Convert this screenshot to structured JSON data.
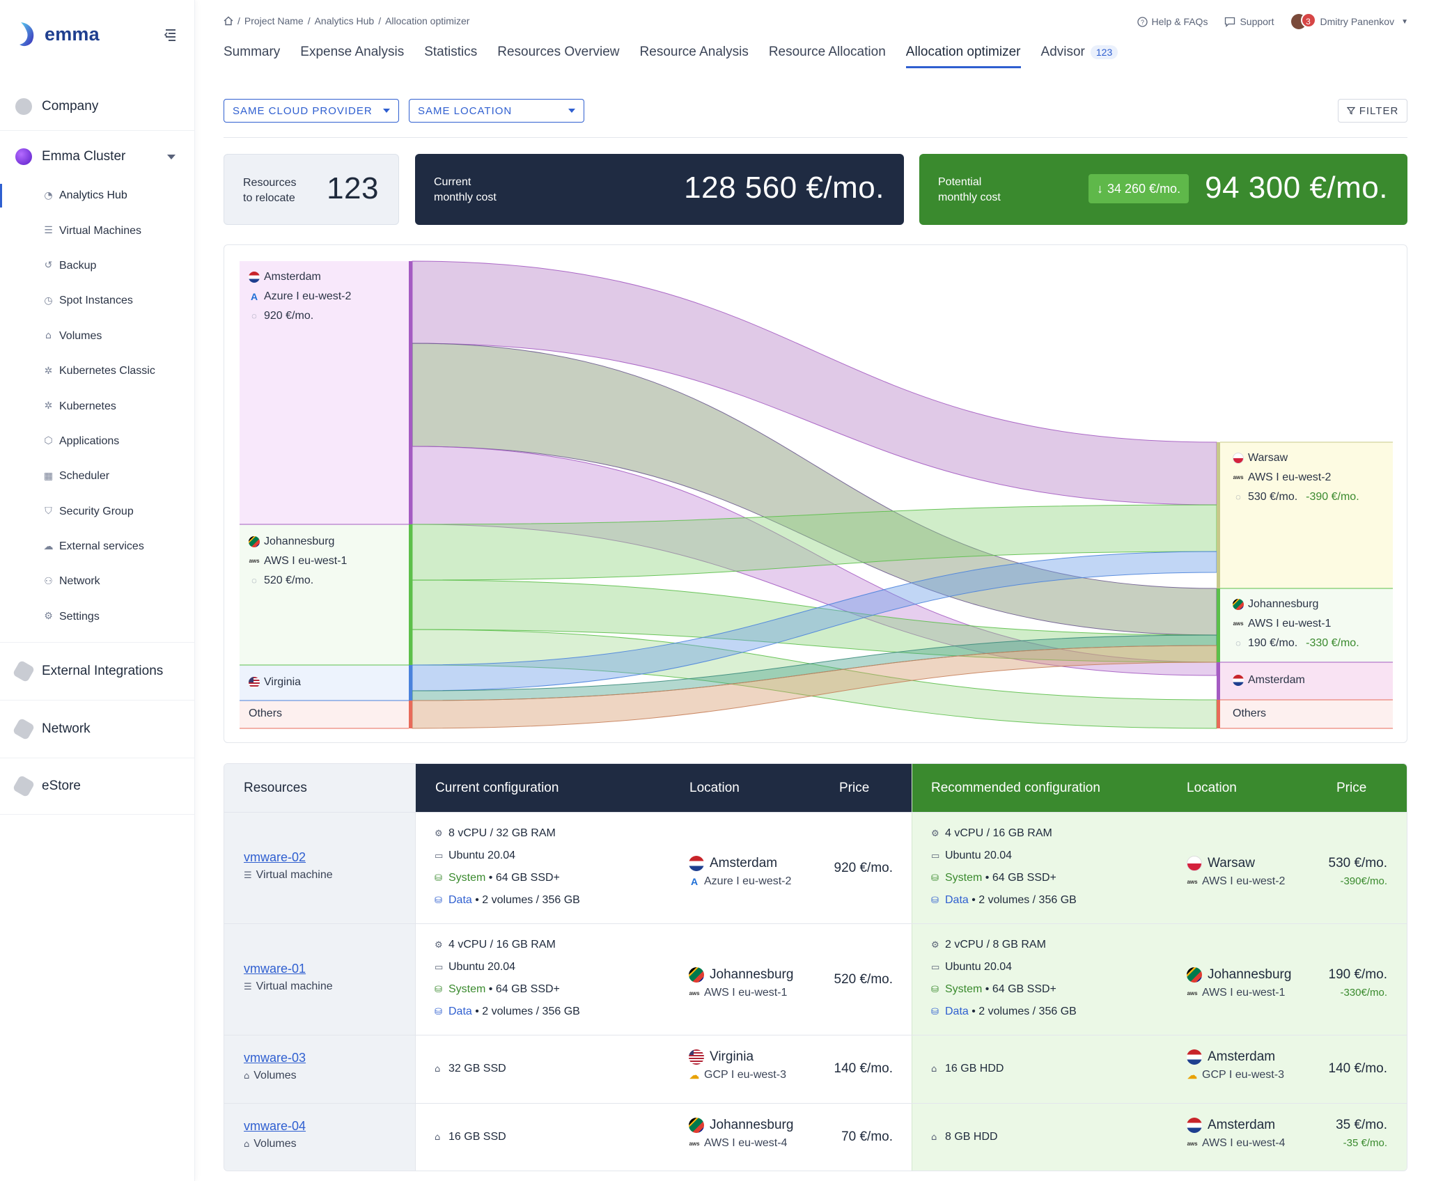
{
  "app": {
    "brand": "emma"
  },
  "sidebar": {
    "company": "Company",
    "cluster": "Emma Cluster",
    "items": [
      {
        "label": "Analytics Hub",
        "icon": "gauge-icon"
      },
      {
        "label": "Virtual Machines",
        "icon": "server-icon"
      },
      {
        "label": "Backup",
        "icon": "history-icon"
      },
      {
        "label": "Spot Instances",
        "icon": "clock-icon"
      },
      {
        "label": "Volumes",
        "icon": "drive-icon"
      },
      {
        "label": "Kubernetes Classic",
        "icon": "helm-icon"
      },
      {
        "label": "Kubernetes",
        "icon": "helm-icon"
      },
      {
        "label": "Applications",
        "icon": "cube-icon"
      },
      {
        "label": "Scheduler",
        "icon": "calendar-icon"
      },
      {
        "label": "Security Group",
        "icon": "shield-icon"
      },
      {
        "label": "External services",
        "icon": "cloud-link-icon"
      },
      {
        "label": "Network",
        "icon": "network-icon"
      },
      {
        "label": "Settings",
        "icon": "gear-icon"
      }
    ],
    "sections": [
      "External Integrations",
      "Network",
      "eStore"
    ]
  },
  "header": {
    "breadcrumb": [
      "Project Name",
      "Analytics Hub",
      "Allocation optimizer"
    ],
    "help": "Help & FAQs",
    "support": "Support",
    "user": "Dmitry Panenkov",
    "notifications": "3",
    "tabs": [
      {
        "label": "Summary"
      },
      {
        "label": "Expense Analysis"
      },
      {
        "label": "Statistics"
      },
      {
        "label": "Resources Overview"
      },
      {
        "label": "Resource Analysis"
      },
      {
        "label": "Resource Allocation"
      },
      {
        "label": "Allocation optimizer",
        "active": true
      },
      {
        "label": "Advisor",
        "count": "123"
      }
    ]
  },
  "filters": {
    "provider": "SAME CLOUD PROVIDER",
    "location": "SAME LOCATION",
    "filter": "FILTER"
  },
  "kpis": {
    "relocate_label_1": "Resources",
    "relocate_label_2": "to relocate",
    "relocate_value": "123",
    "current_label_1": "Current",
    "current_label_2": "monthly cost",
    "current_value": "128 560 €/mo.",
    "potential_label_1": "Potential",
    "potential_label_2": "monthly cost",
    "savings": "34 260 €/mo.",
    "potential_value": "94 300 €/mo."
  },
  "sankey": {
    "sources": [
      {
        "city": "Amsterdam",
        "provider": "Azure I eu-west-2",
        "price": "920 €/mo."
      },
      {
        "city": "Johannesburg",
        "provider": "AWS I eu-west-1",
        "price": "520 €/mo."
      },
      {
        "city": "Virginia"
      },
      {
        "city": "Others"
      }
    ],
    "targets": [
      {
        "city": "Warsaw",
        "provider": "AWS I eu-west-2",
        "price": "530 €/mo.",
        "saving": "-390 €/mo."
      },
      {
        "city": "Johannesburg",
        "provider": "AWS I eu-west-1",
        "price": "190 €/mo.",
        "saving": "-330 €/mo."
      },
      {
        "city": "Amsterdam"
      },
      {
        "city": "Others"
      }
    ],
    "colors": {
      "amsterdam": "#a45bc2",
      "johannesburg": "#5cbf4a",
      "virginia": "#4a82dc",
      "others": "#e86a5a",
      "warsaw": "#c7c98a"
    }
  },
  "table": {
    "headers": {
      "resources": "Resources",
      "current": "Current configuration",
      "location": "Location",
      "price": "Price",
      "recommended": "Recommended configuration",
      "location2": "Location",
      "price2": "Price"
    },
    "rows": [
      {
        "name": "vmware-02",
        "type": "Virtual machine",
        "cur": {
          "cpu": "8 vCPU / 32 GB RAM",
          "os": "Ubuntu 20.04",
          "sys_label": "System",
          "sys": " • 64 GB SSD+",
          "data_label": "Data",
          "data": " • 2 volumes / 356 GB"
        },
        "cur_city": "Amsterdam",
        "cur_prov": "Azure I eu-west-2",
        "cur_price": "920 €/mo.",
        "rec": {
          "cpu": "4 vCPU / 16 GB RAM",
          "os": "Ubuntu 20.04",
          "sys_label": "System",
          "sys": " • 64 GB SSD+",
          "data_label": "Data",
          "data": " • 2 volumes / 356 GB"
        },
        "rec_city": "Warsaw",
        "rec_prov": "AWS I eu-west-2",
        "rec_price": "530 €/mo.",
        "rec_saving": "-390€/mo."
      },
      {
        "name": "vmware-01",
        "type": "Virtual machine",
        "cur": {
          "cpu": "4 vCPU / 16 GB RAM",
          "os": "Ubuntu 20.04",
          "sys_label": "System",
          "sys": " • 64 GB SSD+",
          "data_label": "Data",
          "data": " • 2 volumes / 356 GB"
        },
        "cur_city": "Johannesburg",
        "cur_prov": "AWS I eu-west-1",
        "cur_price": "520 €/mo.",
        "rec": {
          "cpu": "2 vCPU / 8 GB RAM",
          "os": "Ubuntu 20.04",
          "sys_label": "System",
          "sys": " • 64 GB SSD+",
          "data_label": "Data",
          "data": " • 2 volumes / 356 GB"
        },
        "rec_city": "Johannesburg",
        "rec_prov": "AWS I eu-west-1",
        "rec_price": "190 €/mo.",
        "rec_saving": "-330€/mo."
      },
      {
        "name": "vmware-03",
        "type": "Volumes",
        "cur_disk": "32 GB SSD",
        "cur_city": "Virginia",
        "cur_prov": "GCP I eu-west-3",
        "cur_price": "140 €/mo.",
        "rec_disk": "16 GB HDD",
        "rec_city": "Amsterdam",
        "rec_prov": "GCP I eu-west-3",
        "rec_price": "140 €/mo."
      },
      {
        "name": "vmware-04",
        "type": "Volumes",
        "cur_disk": "16 GB SSD",
        "cur_city": "Johannesburg",
        "cur_prov": "AWS I eu-west-4",
        "cur_price": "70 €/mo.",
        "rec_disk": "8 GB HDD",
        "rec_city": "Amsterdam",
        "rec_prov": "AWS I eu-west-4",
        "rec_price": "35 €/mo.",
        "rec_saving": "-35 €/mo."
      }
    ]
  }
}
